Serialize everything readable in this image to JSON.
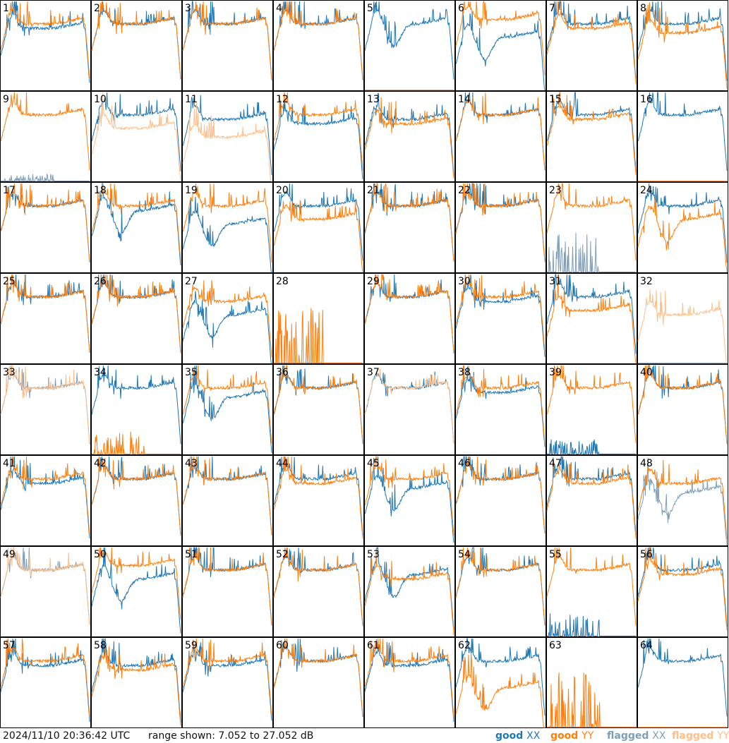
{
  "footer": {
    "timestamp": "2024/11/10 20:36:42 UTC",
    "range": "range shown: 7.052 to 27.052 dB"
  },
  "legend": [
    {
      "key": "good_xx",
      "word": "good",
      "pol": "XX",
      "color": "#1f77b4"
    },
    {
      "key": "good_yy",
      "word": "good",
      "pol": "YY",
      "color": "#ff7f0e"
    },
    {
      "key": "flagged_xx",
      "word": "flagged",
      "pol": "XX",
      "color": "#7f9fb8"
    },
    {
      "key": "flagged_yy",
      "word": "flagged",
      "pol": "YY",
      "color": "#ffbf8a"
    }
  ],
  "colors": {
    "good_xx": "#1f77b4",
    "good_yy": "#ff7f0e",
    "flagged_xx": "#7f9fb8",
    "flagged_yy": "#ffbf8a",
    "border": "#000000"
  },
  "chart_data": {
    "type": "line",
    "layout": "small-multiples 8x8",
    "ylim": [
      7.052,
      27.052
    ],
    "yunit": "dB",
    "panels": [
      {
        "label": "1",
        "xx": {
          "state": "good",
          "shape": "normal",
          "level": 21
        },
        "yy": {
          "state": "good",
          "shape": "normal",
          "level": 22
        }
      },
      {
        "label": "2",
        "xx": {
          "state": "good",
          "shape": "normal",
          "level": 22
        },
        "yy": {
          "state": "good",
          "shape": "normal",
          "level": 22
        }
      },
      {
        "label": "3",
        "xx": {
          "state": "good",
          "shape": "normal",
          "level": 22
        },
        "yy": {
          "state": "good",
          "shape": "normal",
          "level": 22
        }
      },
      {
        "label": "4",
        "xx": {
          "state": "good",
          "shape": "normal",
          "level": 22
        },
        "yy": {
          "state": "good",
          "shape": "normal",
          "level": 22
        }
      },
      {
        "label": "5",
        "xx": {
          "state": "good",
          "shape": "dip",
          "level": 22
        },
        "yy": {
          "state": "good",
          "shape": "flat_zero",
          "level": 7.1
        }
      },
      {
        "label": "6",
        "xx": {
          "state": "good",
          "shape": "dip",
          "level": 19
        },
        "yy": {
          "state": "good",
          "shape": "normal",
          "level": 23
        }
      },
      {
        "label": "7",
        "xx": {
          "state": "good",
          "shape": "normal",
          "level": 22
        },
        "yy": {
          "state": "good",
          "shape": "normal",
          "level": 21
        }
      },
      {
        "label": "8",
        "xx": {
          "state": "good",
          "shape": "normal",
          "level": 22
        },
        "yy": {
          "state": "good",
          "shape": "normal",
          "level": 20
        }
      },
      {
        "label": "9",
        "xx": {
          "state": "flagged",
          "shape": "spikes_zero",
          "level": 8
        },
        "yy": {
          "state": "good",
          "shape": "normal",
          "level": 22
        }
      },
      {
        "label": "10",
        "xx": {
          "state": "good",
          "shape": "normal",
          "level": 22
        },
        "yy": {
          "state": "flagged",
          "shape": "normal",
          "level": 19
        }
      },
      {
        "label": "11",
        "xx": {
          "state": "good",
          "shape": "normal",
          "level": 21
        },
        "yy": {
          "state": "flagged",
          "shape": "normal",
          "level": 17
        }
      },
      {
        "label": "12",
        "xx": {
          "state": "good",
          "shape": "normal",
          "level": 20
        },
        "yy": {
          "state": "good",
          "shape": "normal",
          "level": 22
        }
      },
      {
        "label": "13",
        "xx": {
          "state": "good",
          "shape": "normal",
          "level": 21
        },
        "yy": {
          "state": "good",
          "shape": "normal",
          "level": 20
        }
      },
      {
        "label": "14",
        "xx": {
          "state": "good",
          "shape": "normal",
          "level": 22
        },
        "yy": {
          "state": "good",
          "shape": "normal",
          "level": 22
        }
      },
      {
        "label": "15",
        "xx": {
          "state": "good",
          "shape": "normal",
          "level": 22
        },
        "yy": {
          "state": "good",
          "shape": "normal",
          "level": 21
        }
      },
      {
        "label": "16",
        "xx": {
          "state": "good",
          "shape": "normal",
          "level": 22
        },
        "yy": {
          "state": "good",
          "shape": "flat_zero",
          "level": 7.1
        }
      },
      {
        "label": "17",
        "xx": {
          "state": "good",
          "shape": "normal",
          "level": 22
        },
        "yy": {
          "state": "good",
          "shape": "normal",
          "level": 22
        }
      },
      {
        "label": "18",
        "xx": {
          "state": "good",
          "shape": "dip",
          "level": 21
        },
        "yy": {
          "state": "good",
          "shape": "normal",
          "level": 22
        }
      },
      {
        "label": "19",
        "xx": {
          "state": "good",
          "shape": "dip",
          "level": 18
        },
        "yy": {
          "state": "good",
          "shape": "normal",
          "level": 22
        }
      },
      {
        "label": "20",
        "xx": {
          "state": "good",
          "shape": "normal",
          "level": 22
        },
        "yy": {
          "state": "good",
          "shape": "normal",
          "level": 19
        }
      },
      {
        "label": "21",
        "xx": {
          "state": "good",
          "shape": "normal",
          "level": 22
        },
        "yy": {
          "state": "good",
          "shape": "normal",
          "level": 22
        }
      },
      {
        "label": "22",
        "xx": {
          "state": "good",
          "shape": "normal",
          "level": 22
        },
        "yy": {
          "state": "good",
          "shape": "normal",
          "level": 22
        }
      },
      {
        "label": "23",
        "xx": {
          "state": "flagged",
          "shape": "spikes_zero",
          "level": 12
        },
        "yy": {
          "state": "good",
          "shape": "normal",
          "level": 22
        }
      },
      {
        "label": "24",
        "xx": {
          "state": "good",
          "shape": "normal",
          "level": 22
        },
        "yy": {
          "state": "good",
          "shape": "dip",
          "level": 19
        }
      },
      {
        "label": "25",
        "xx": {
          "state": "good",
          "shape": "normal",
          "level": 22
        },
        "yy": {
          "state": "good",
          "shape": "normal",
          "level": 22
        }
      },
      {
        "label": "26",
        "xx": {
          "state": "good",
          "shape": "normal",
          "level": 22
        },
        "yy": {
          "state": "good",
          "shape": "normal",
          "level": 22
        }
      },
      {
        "label": "27",
        "xx": {
          "state": "good",
          "shape": "dip",
          "level": 18
        },
        "yy": {
          "state": "good",
          "shape": "normal",
          "level": 21
        }
      },
      {
        "label": "28",
        "xx": {
          "state": "good",
          "shape": "flat_zero",
          "level": 7.1
        },
        "yy": {
          "state": "good",
          "shape": "spikes_zero",
          "level": 14
        }
      },
      {
        "label": "29",
        "xx": {
          "state": "good",
          "shape": "normal",
          "level": 22
        },
        "yy": {
          "state": "good",
          "shape": "normal",
          "level": 22
        }
      },
      {
        "label": "30",
        "xx": {
          "state": "good",
          "shape": "normal",
          "level": 21
        },
        "yy": {
          "state": "good",
          "shape": "normal",
          "level": 22
        }
      },
      {
        "label": "31",
        "xx": {
          "state": "good",
          "shape": "normal",
          "level": 22
        },
        "yy": {
          "state": "good",
          "shape": "normal",
          "level": 19
        }
      },
      {
        "label": "32",
        "xx": {
          "state": "flagged",
          "shape": "flat_zero",
          "level": 7.1
        },
        "yy": {
          "state": "flagged",
          "shape": "normal",
          "level": 18
        }
      },
      {
        "label": "33",
        "xx": {
          "state": "flagged",
          "shape": "normal",
          "level": 22
        },
        "yy": {
          "state": "flagged",
          "shape": "normal",
          "level": 22
        }
      },
      {
        "label": "34",
        "xx": {
          "state": "good",
          "shape": "normal",
          "level": 22
        },
        "yy": {
          "state": "good",
          "shape": "spikes_zero",
          "level": 10
        }
      },
      {
        "label": "35",
        "xx": {
          "state": "good",
          "shape": "dip",
          "level": 20
        },
        "yy": {
          "state": "good",
          "shape": "normal",
          "level": 22
        }
      },
      {
        "label": "36",
        "xx": {
          "state": "good",
          "shape": "normal",
          "level": 22
        },
        "yy": {
          "state": "good",
          "shape": "normal",
          "level": 22
        }
      },
      {
        "label": "37",
        "xx": {
          "state": "good",
          "shape": "normal",
          "level": 22
        },
        "yy": {
          "state": "flagged",
          "shape": "normal",
          "level": 22
        }
      },
      {
        "label": "38",
        "xx": {
          "state": "good",
          "shape": "normal",
          "level": 21
        },
        "yy": {
          "state": "good",
          "shape": "normal",
          "level": 22
        }
      },
      {
        "label": "39",
        "xx": {
          "state": "good",
          "shape": "spikes_zero",
          "level": 9
        },
        "yy": {
          "state": "good",
          "shape": "normal",
          "level": 22
        }
      },
      {
        "label": "40",
        "xx": {
          "state": "good",
          "shape": "normal",
          "level": 22
        },
        "yy": {
          "state": "good",
          "shape": "normal",
          "level": 22
        }
      },
      {
        "label": "41",
        "xx": {
          "state": "good",
          "shape": "normal",
          "level": 21
        },
        "yy": {
          "state": "good",
          "shape": "normal",
          "level": 22
        }
      },
      {
        "label": "42",
        "xx": {
          "state": "good",
          "shape": "normal",
          "level": 22
        },
        "yy": {
          "state": "good",
          "shape": "normal",
          "level": 22
        }
      },
      {
        "label": "43",
        "xx": {
          "state": "good",
          "shape": "normal",
          "level": 22
        },
        "yy": {
          "state": "good",
          "shape": "normal",
          "level": 22
        }
      },
      {
        "label": "44",
        "xx": {
          "state": "good",
          "shape": "normal",
          "level": 22
        },
        "yy": {
          "state": "good",
          "shape": "normal",
          "level": 21
        }
      },
      {
        "label": "45",
        "xx": {
          "state": "good",
          "shape": "dip",
          "level": 20
        },
        "yy": {
          "state": "good",
          "shape": "normal",
          "level": 22
        }
      },
      {
        "label": "46",
        "xx": {
          "state": "good",
          "shape": "normal",
          "level": 22
        },
        "yy": {
          "state": "good",
          "shape": "normal",
          "level": 22
        }
      },
      {
        "label": "47",
        "xx": {
          "state": "good",
          "shape": "normal",
          "level": 22
        },
        "yy": {
          "state": "good",
          "shape": "normal",
          "level": 21
        }
      },
      {
        "label": "48",
        "xx": {
          "state": "flagged",
          "shape": "dip",
          "level": 19
        },
        "yy": {
          "state": "good",
          "shape": "normal",
          "level": 21
        }
      },
      {
        "label": "49",
        "xx": {
          "state": "flagged",
          "shape": "normal",
          "level": 22
        },
        "yy": {
          "state": "flagged",
          "shape": "normal",
          "level": 22
        }
      },
      {
        "label": "50",
        "xx": {
          "state": "good",
          "shape": "dip",
          "level": 20
        },
        "yy": {
          "state": "good",
          "shape": "normal",
          "level": 23
        }
      },
      {
        "label": "51",
        "xx": {
          "state": "good",
          "shape": "normal",
          "level": 22
        },
        "yy": {
          "state": "good",
          "shape": "normal",
          "level": 22
        }
      },
      {
        "label": "52",
        "xx": {
          "state": "good",
          "shape": "normal",
          "level": 22
        },
        "yy": {
          "state": "good",
          "shape": "normal",
          "level": 22
        }
      },
      {
        "label": "53",
        "xx": {
          "state": "good",
          "shape": "dip",
          "level": 21
        },
        "yy": {
          "state": "good",
          "shape": "normal",
          "level": 20
        }
      },
      {
        "label": "54",
        "xx": {
          "state": "good",
          "shape": "normal",
          "level": 22
        },
        "yy": {
          "state": "good",
          "shape": "normal",
          "level": 22
        }
      },
      {
        "label": "55",
        "xx": {
          "state": "good",
          "shape": "spikes_zero",
          "level": 10
        },
        "yy": {
          "state": "good",
          "shape": "normal",
          "level": 22
        }
      },
      {
        "label": "56",
        "xx": {
          "state": "good",
          "shape": "normal",
          "level": 22
        },
        "yy": {
          "state": "good",
          "shape": "normal",
          "level": 21
        }
      },
      {
        "label": "57",
        "xx": {
          "state": "good",
          "shape": "normal",
          "level": 21
        },
        "yy": {
          "state": "good",
          "shape": "normal",
          "level": 22
        }
      },
      {
        "label": "58",
        "xx": {
          "state": "good",
          "shape": "normal",
          "level": 21
        },
        "yy": {
          "state": "good",
          "shape": "normal",
          "level": 20
        }
      },
      {
        "label": "59",
        "xx": {
          "state": "good",
          "shape": "normal",
          "level": 21
        },
        "yy": {
          "state": "good",
          "shape": "normal",
          "level": 22
        }
      },
      {
        "label": "60",
        "xx": {
          "state": "good",
          "shape": "normal",
          "level": 22
        },
        "yy": {
          "state": "good",
          "shape": "normal",
          "level": 22
        }
      },
      {
        "label": "61",
        "xx": {
          "state": "good",
          "shape": "normal",
          "level": 21
        },
        "yy": {
          "state": "good",
          "shape": "normal",
          "level": 22
        }
      },
      {
        "label": "62",
        "xx": {
          "state": "good",
          "shape": "normal",
          "level": 22
        },
        "yy": {
          "state": "good",
          "shape": "dip",
          "level": 16
        }
      },
      {
        "label": "63",
        "xx": {
          "state": "good",
          "shape": "flat_zero",
          "level": 7.1
        },
        "yy": {
          "state": "good",
          "shape": "spikes_zero",
          "level": 14
        }
      },
      {
        "label": "64",
        "xx": {
          "state": "good",
          "shape": "normal",
          "level": 22
        },
        "yy": {
          "state": "good",
          "shape": "flat_zero",
          "level": 7.1
        }
      }
    ]
  }
}
